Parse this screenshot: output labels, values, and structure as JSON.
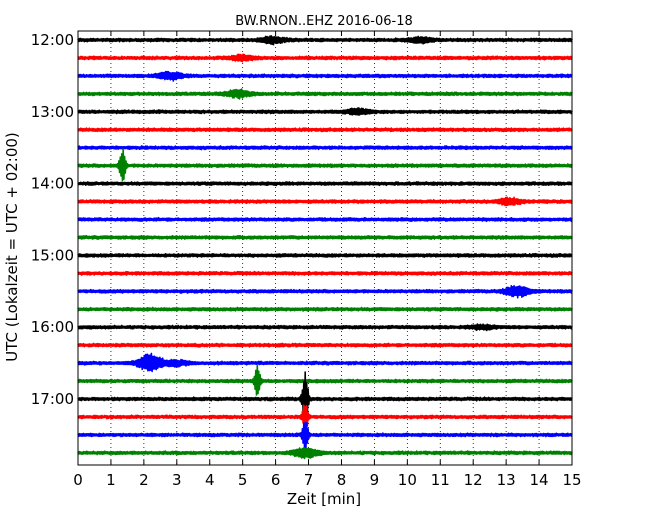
{
  "chart_data": {
    "type": "line",
    "title": "BW.RNON..EHZ 2016-06-18",
    "xlabel": "Zeit  [min]",
    "ylabel": "UTC (Lokalzeit = UTC + 02:00)",
    "xlim": [
      0,
      15
    ],
    "xticks": [
      "0",
      "1",
      "2",
      "3",
      "4",
      "5",
      "6",
      "7",
      "8",
      "9",
      "10",
      "11",
      "12",
      "13",
      "14",
      "15"
    ],
    "row_interval_minutes": 15,
    "y_tick_labels": [
      "12:00",
      "13:00",
      "14:00",
      "15:00",
      "16:00",
      "17:00"
    ],
    "grid": true,
    "trace_colors": [
      "#000000",
      "#ff0000",
      "#0000ff",
      "#008000"
    ],
    "trace_rows": [
      "12:00",
      "12:15",
      "12:30",
      "12:45",
      "13:00",
      "13:15",
      "13:30",
      "13:45",
      "14:00",
      "14:15",
      "14:30",
      "14:45",
      "15:00",
      "15:15",
      "15:30",
      "15:45",
      "16:00",
      "16:15",
      "16:30",
      "16:45",
      "17:00",
      "17:15",
      "17:30",
      "17:45"
    ],
    "events": [
      {
        "row": "12:00",
        "minute": 5.9,
        "amplitude": 0.25
      },
      {
        "row": "12:00",
        "minute": 10.4,
        "amplitude": 0.2
      },
      {
        "row": "12:15",
        "minute": 5.0,
        "amplitude": 0.2
      },
      {
        "row": "12:30",
        "minute": 2.8,
        "amplitude": 0.3
      },
      {
        "row": "12:45",
        "minute": 4.85,
        "amplitude": 0.3
      },
      {
        "row": "13:00",
        "minute": 8.5,
        "amplitude": 0.2
      },
      {
        "row": "13:45",
        "minute": 1.35,
        "amplitude": 1.5
      },
      {
        "row": "14:15",
        "minute": 13.1,
        "amplitude": 0.25
      },
      {
        "row": "15:30",
        "minute": 13.35,
        "amplitude": 0.45
      },
      {
        "row": "16:00",
        "minute": 12.3,
        "amplitude": 0.15
      },
      {
        "row": "16:30",
        "minute": 2.2,
        "amplitude": 0.7
      },
      {
        "row": "16:30",
        "minute": 3.0,
        "amplitude": 0.2
      },
      {
        "row": "16:45",
        "minute": 5.45,
        "amplitude": 1.2
      },
      {
        "row": "17:00",
        "minute": 6.9,
        "amplitude": 2.4
      },
      {
        "row": "17:15",
        "minute": 6.9,
        "amplitude": 1.2
      },
      {
        "row": "17:30",
        "minute": 6.9,
        "amplitude": 1.2
      },
      {
        "row": "17:45",
        "minute": 6.9,
        "amplitude": 0.4
      }
    ]
  }
}
